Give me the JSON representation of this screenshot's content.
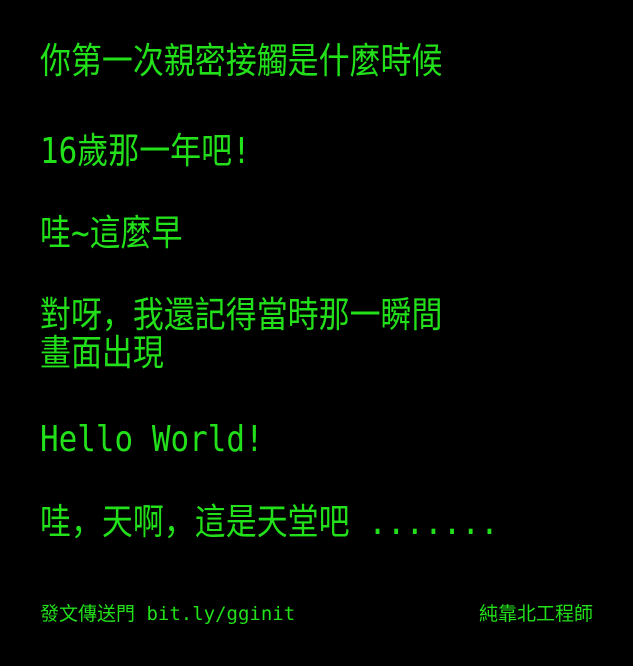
{
  "colors": {
    "background": "#000000",
    "text": "#22e01a"
  },
  "dialogue": {
    "line1": "你第一次親密接觸是什麼時候",
    "line2": "16歲那一年吧!",
    "line3": "哇~這麼早",
    "line4a": "對呀，我還記得當時那一瞬間",
    "line4b": "畫面出現",
    "line5": "Hello World!",
    "line6": "哇，天啊，這是天堂吧 ......."
  },
  "footer": {
    "left": "發文傳送門 bit.ly/gginit",
    "right": "純靠北工程師"
  }
}
